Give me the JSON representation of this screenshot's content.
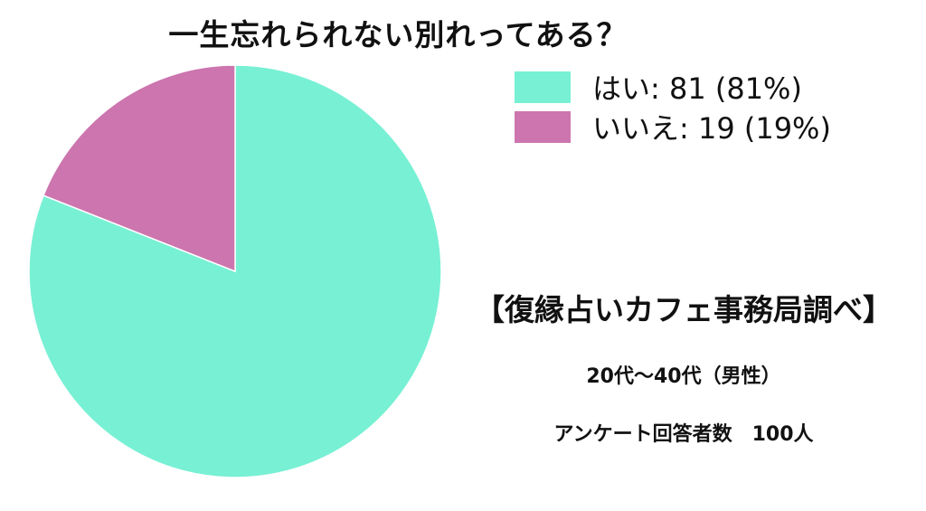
{
  "chart_data": {
    "type": "pie",
    "title": "一生忘れられない別れってある？",
    "categories": [
      "はい",
      "いいえ"
    ],
    "values": [
      81,
      19
    ],
    "percentages": [
      "81%",
      "19%"
    ],
    "legend_labels": [
      "はい: 81 (81%)",
      "いいえ: 19 (19%)"
    ],
    "colors": [
      "#78f0d4",
      "#cc75ae"
    ],
    "legend_position": "top-right"
  },
  "source": "【復縁占いカフェ事務局調べ】",
  "demographic": "20代〜40代（男性）",
  "respondents": "アンケート回答者数　100人"
}
